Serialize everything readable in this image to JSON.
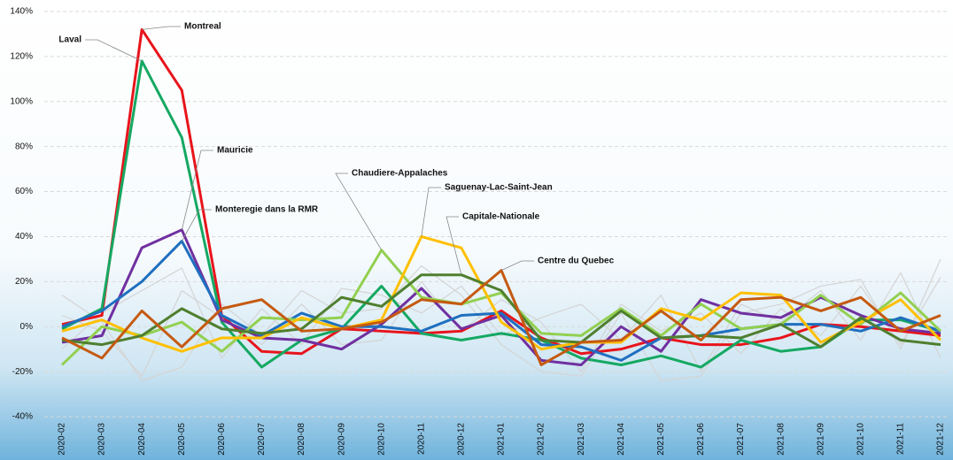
{
  "chart_data": {
    "type": "line",
    "categories": [
      "2020-02",
      "2020-03",
      "2020-04",
      "2020-05",
      "2020-06",
      "2020-07",
      "2020-08",
      "2020-09",
      "2020-10",
      "2020-11",
      "2020-12",
      "2021-01",
      "2021-02",
      "2021-03",
      "2021-04",
      "2021-05",
      "2021-06",
      "2021-07",
      "2021-08",
      "2021-09",
      "2021-10",
      "2021-11",
      "2021-12"
    ],
    "ylim": [
      -40,
      140
    ],
    "yticks": [
      {
        "value": -40,
        "label": "-40%"
      },
      {
        "value": -20,
        "label": "-20%"
      },
      {
        "value": 0,
        "label": "0%"
      },
      {
        "value": 20,
        "label": "20%"
      },
      {
        "value": 40,
        "label": "40%"
      },
      {
        "value": 60,
        "label": "60%"
      },
      {
        "value": 80,
        "label": "80%"
      },
      {
        "value": 100,
        "label": "100%"
      },
      {
        "value": 120,
        "label": "120%"
      },
      {
        "value": 140,
        "label": "140%"
      }
    ],
    "grid": true,
    "series": [
      {
        "name": "Montreal",
        "color": "#e8141b",
        "values": [
          1,
          5,
          132,
          105,
          5,
          -11,
          -12,
          -1,
          -2,
          -3,
          -2,
          7,
          -5,
          -12,
          -10,
          -5,
          -8,
          -8,
          -5,
          1,
          0,
          -2,
          -4
        ]
      },
      {
        "name": "Laval",
        "color": "#15a862",
        "values": [
          -1,
          8,
          118,
          84,
          2,
          -18,
          -6,
          -1,
          18,
          -3,
          -6,
          -3,
          -6,
          -14,
          -17,
          -13,
          -18,
          -6,
          -11,
          -9,
          3,
          3,
          -2
        ]
      },
      {
        "name": "Mauricie",
        "color": "#7030a0",
        "values": [
          -7,
          -4,
          35,
          43,
          3,
          -5,
          -6,
          -10,
          1,
          17,
          -1,
          5,
          -15,
          -17,
          0,
          -11,
          12,
          6,
          4,
          13,
          5,
          -1,
          -3
        ]
      },
      {
        "name": "Monteregie dans la RMR",
        "color": "#1f6fbf",
        "values": [
          0,
          7,
          20,
          38,
          5,
          -4,
          6,
          0,
          0,
          -2,
          5,
          6,
          -8,
          -9,
          -15,
          -5,
          -4,
          -1,
          1,
          1,
          -2,
          4,
          -2
        ]
      },
      {
        "name": "Chaudiere-Appalaches",
        "color": "#92d050",
        "values": [
          -17,
          0,
          -4,
          2,
          -11,
          4,
          3,
          4,
          34,
          13,
          10,
          15,
          -3,
          -4,
          8,
          -4,
          10,
          -1,
          1,
          14,
          1,
          15,
          -2
        ]
      },
      {
        "name": "Saguenay-Lac-Saint-Jean",
        "color": "#ffc000",
        "values": [
          -2,
          3,
          -5,
          -11,
          -5,
          -5,
          4,
          -1,
          3,
          40,
          35,
          2,
          -10,
          -7,
          -7,
          8,
          3,
          15,
          14,
          -7,
          2,
          12,
          -6
        ]
      },
      {
        "name": "Capitale-Nationale",
        "color": "#4f7f2f",
        "values": [
          -6,
          -8,
          -4,
          8,
          -1,
          -3,
          -1,
          13,
          9,
          23,
          23,
          16,
          -6,
          -7,
          7,
          -5,
          -4,
          -5,
          1,
          -9,
          4,
          -6,
          -8
        ]
      },
      {
        "name": "Centre du Quebec",
        "color": "#c55a11",
        "values": [
          -5,
          -14,
          7,
          -9,
          8,
          12,
          -2,
          -1,
          2,
          12,
          10,
          25,
          -17,
          -7,
          -6,
          7,
          -6,
          12,
          13,
          7,
          13,
          -2,
          5
        ]
      },
      {
        "color": "#d4d4d4",
        "values": [
          14,
          2,
          -24,
          -18,
          10,
          -4,
          16,
          6,
          8,
          27,
          14,
          -8,
          -20,
          -22,
          6,
          -24,
          -22,
          6,
          10,
          18,
          21,
          -10,
          30
        ]
      },
      {
        "color": "#d4d4d4",
        "values": [
          -10,
          6,
          16,
          26,
          -14,
          8,
          -8,
          17,
          14,
          6,
          18,
          -4,
          4,
          10,
          -6,
          14,
          -20,
          10,
          2,
          16,
          -6,
          24,
          -14
        ]
      },
      {
        "color": "#d4d4d4",
        "values": [
          5,
          -2,
          -22,
          16,
          4,
          -8,
          10,
          -8,
          -6,
          20,
          -2,
          12,
          2,
          -20,
          10,
          -2,
          6,
          -12,
          8,
          -4,
          18,
          -8,
          22
        ]
      }
    ]
  }
}
